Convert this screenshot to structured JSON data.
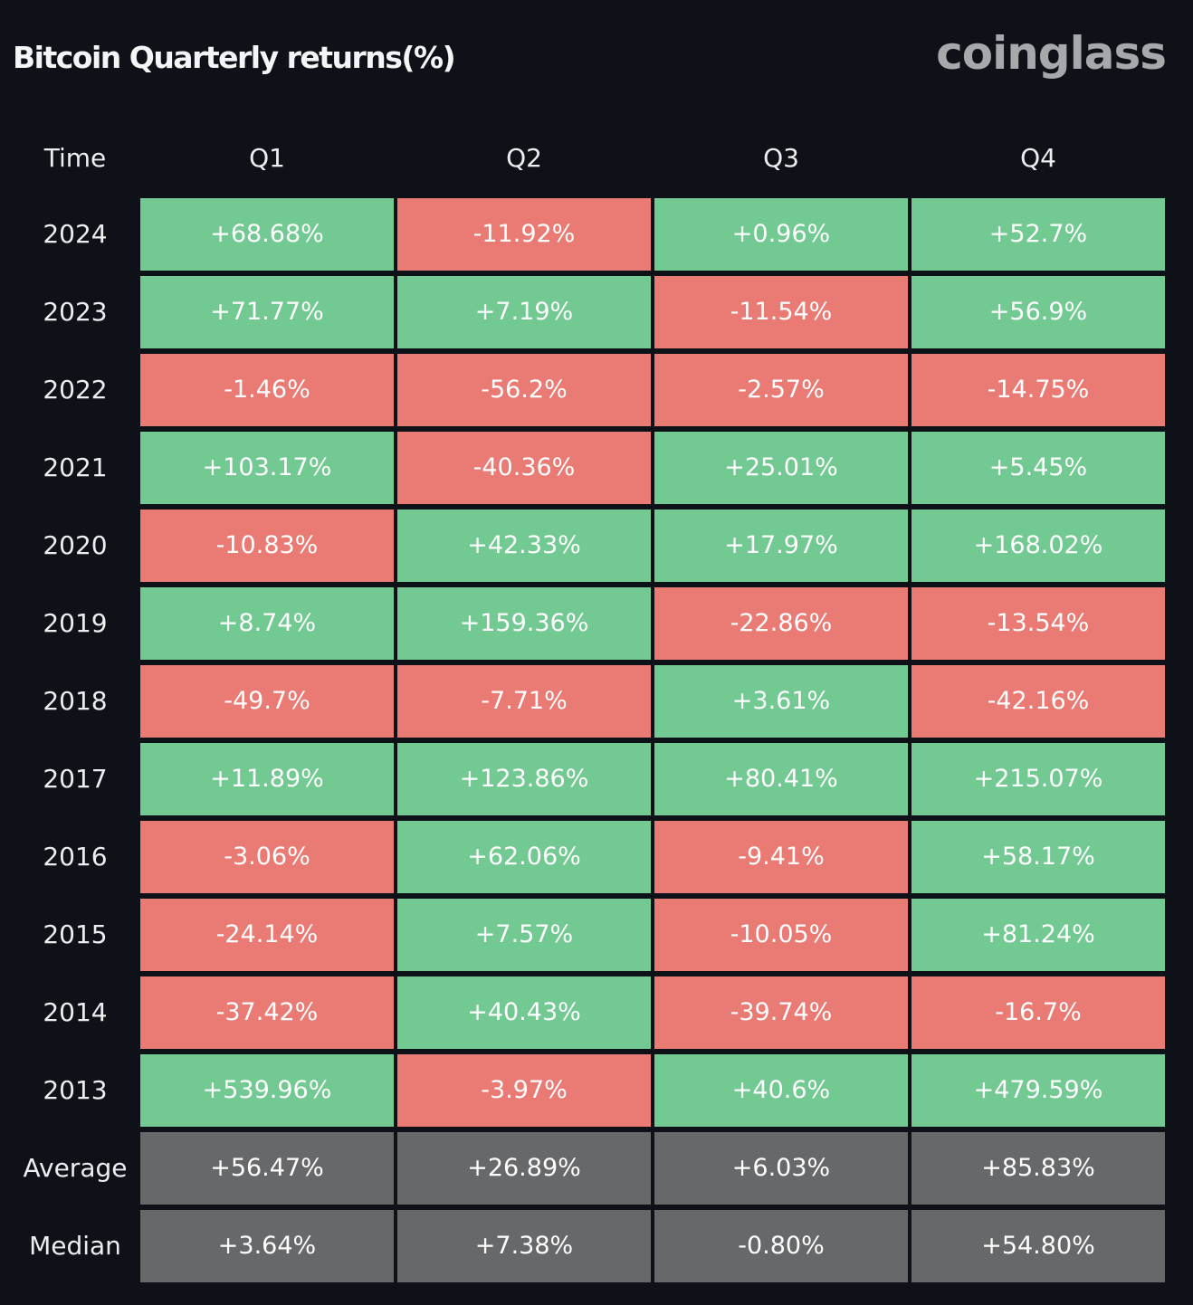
{
  "title": "Bitcoin Quarterly returns(%)",
  "logo": "coinglass",
  "colors": {
    "background": "#0e1117",
    "positive": "#72c992",
    "negative": "#ea7a74",
    "summary": "#67686a"
  },
  "chart_data": {
    "type": "heatmap",
    "title": "Bitcoin Quarterly returns(%)",
    "row_header": "Time",
    "columns": [
      "Q1",
      "Q2",
      "Q3",
      "Q4"
    ],
    "rows": [
      {
        "label": "2024",
        "values": [
          "+68.68%",
          "-11.92%",
          "+0.96%",
          "+52.7%"
        ]
      },
      {
        "label": "2023",
        "values": [
          "+71.77%",
          "+7.19%",
          "-11.54%",
          "+56.9%"
        ]
      },
      {
        "label": "2022",
        "values": [
          "-1.46%",
          "-56.2%",
          "-2.57%",
          "-14.75%"
        ]
      },
      {
        "label": "2021",
        "values": [
          "+103.17%",
          "-40.36%",
          "+25.01%",
          "+5.45%"
        ]
      },
      {
        "label": "2020",
        "values": [
          "-10.83%",
          "+42.33%",
          "+17.97%",
          "+168.02%"
        ]
      },
      {
        "label": "2019",
        "values": [
          "+8.74%",
          "+159.36%",
          "-22.86%",
          "-13.54%"
        ]
      },
      {
        "label": "2018",
        "values": [
          "-49.7%",
          "-7.71%",
          "+3.61%",
          "-42.16%"
        ]
      },
      {
        "label": "2017",
        "values": [
          "+11.89%",
          "+123.86%",
          "+80.41%",
          "+215.07%"
        ]
      },
      {
        "label": "2016",
        "values": [
          "-3.06%",
          "+62.06%",
          "-9.41%",
          "+58.17%"
        ]
      },
      {
        "label": "2015",
        "values": [
          "-24.14%",
          "+7.57%",
          "-10.05%",
          "+81.24%"
        ]
      },
      {
        "label": "2014",
        "values": [
          "-37.42%",
          "+40.43%",
          "-39.74%",
          "-16.7%"
        ]
      },
      {
        "label": "2013",
        "values": [
          "+539.96%",
          "-3.97%",
          "+40.6%",
          "+479.59%"
        ]
      }
    ],
    "summary_rows": [
      {
        "label": "Average",
        "values": [
          "+56.47%",
          "+26.89%",
          "+6.03%",
          "+85.83%"
        ]
      },
      {
        "label": "Median",
        "values": [
          "+3.64%",
          "+7.38%",
          "-0.80%",
          "+54.80%"
        ]
      }
    ]
  }
}
